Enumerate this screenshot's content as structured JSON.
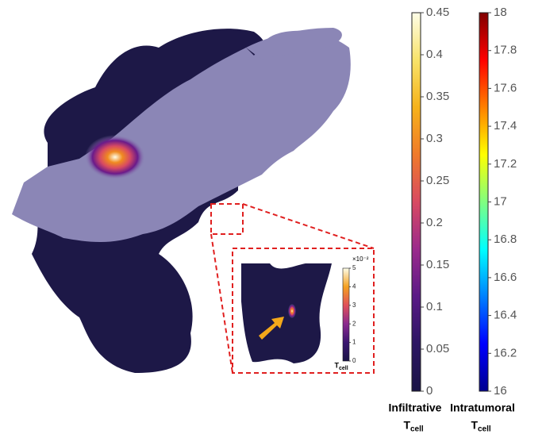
{
  "colorbars": [
    {
      "label": "Infiltrative",
      "symbol": "T",
      "subscript": "cell",
      "lim": [
        0,
        0.45
      ],
      "ticks": [
        0,
        0.05,
        0.1,
        0.15,
        0.2,
        0.25,
        0.3,
        0.35,
        0.4,
        0.45
      ],
      "colors": [
        "#1a1446",
        "#2c1663",
        "#5a1a86",
        "#9b2a8c",
        "#d84a62",
        "#f07a2a",
        "#f6b21a",
        "#f8e36a",
        "#fdfde8"
      ]
    },
    {
      "label": "Intratumoral",
      "symbol": "T",
      "subscript": "cell",
      "lim": [
        16,
        18
      ],
      "ticks": [
        16,
        16.2,
        16.4,
        16.6,
        16.8,
        17,
        17.2,
        17.4,
        17.6,
        17.8,
        18
      ],
      "colors": [
        "#00008f",
        "#0000ff",
        "#0080ff",
        "#00ffff",
        "#80ff80",
        "#ffff00",
        "#ff8000",
        "#ff0000",
        "#800000"
      ]
    }
  ],
  "inset": {
    "symbol": "T",
    "subscript": "cell",
    "exponent": "×10⁻²",
    "lim": [
      0,
      5
    ],
    "ticks": [
      0,
      1,
      2,
      3,
      4,
      5
    ],
    "colors": [
      "#1a1446",
      "#3a1670",
      "#8a2a8e",
      "#e0505a",
      "#f4a020",
      "#fdfde8"
    ]
  }
}
